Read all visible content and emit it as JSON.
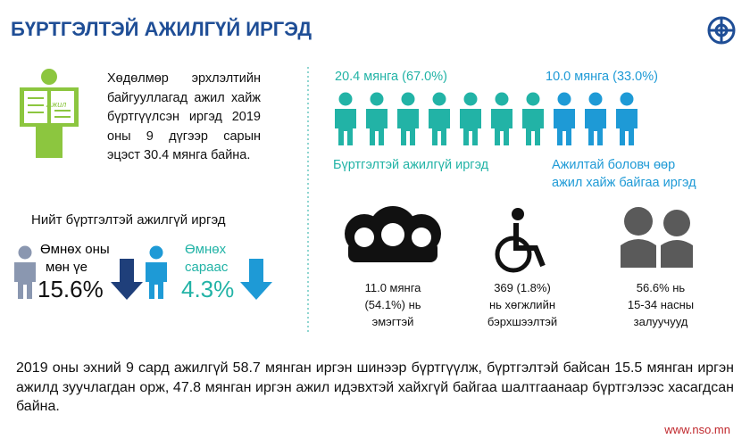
{
  "header": {
    "title": "БҮРТГЭЛТЭЙ АЖИЛГҮЙ ИРГЭД"
  },
  "intro": {
    "icon_label": "Ажил",
    "text": "Хөдөлмөр эрхлэлтийн байгууллагад ажил хайж бүртгүүлсэн иргэд 2019 оны 9 дүгээр сарын эцэст 30.4 мянга байна."
  },
  "change": {
    "title": "Нийт бүртгэлтэй ажилгүй иргэд",
    "items": [
      {
        "label_1": "Өмнөх оны",
        "label_2": "мөн үе",
        "value": "15.6%"
      },
      {
        "label_1": "Өмнөх",
        "label_2": "сараас",
        "value": "4.3%"
      }
    ]
  },
  "split": {
    "groups": [
      {
        "value": "20.4 мянга (67.0%)",
        "label": "Бүртгэлтэй ажилгүй иргэд"
      },
      {
        "value": "10.0 мянга (33.0%)",
        "label_1": "Ажилтай боловч өөр",
        "label_2": "ажил хайж байгаа иргэд"
      }
    ]
  },
  "stats": [
    {
      "lines": [
        "11.0 мянга",
        "(54.1%) нь",
        "эмэгтэй"
      ]
    },
    {
      "lines": [
        "369 (1.8%)",
        "нь хөгжлийн",
        "бэрхшээлтэй"
      ]
    },
    {
      "lines": [
        "56.6% нь",
        "15-34 насны",
        "залуучууд"
      ]
    }
  ],
  "footer": {
    "text": "2019 оны эхний 9 сард ажилгүй 58.7 мянган иргэн шинээр бүртгүүлж, бүртгэлтэй байсан 15.5 мянган иргэн ажилд зуучлагдан орж, 47.8 мянган иргэн ажил идэвхтэй хайхгүй байгаа шалтгаанаар бүртгэлээс хасагдсан байна.",
    "url": "www.nso.mn"
  }
}
